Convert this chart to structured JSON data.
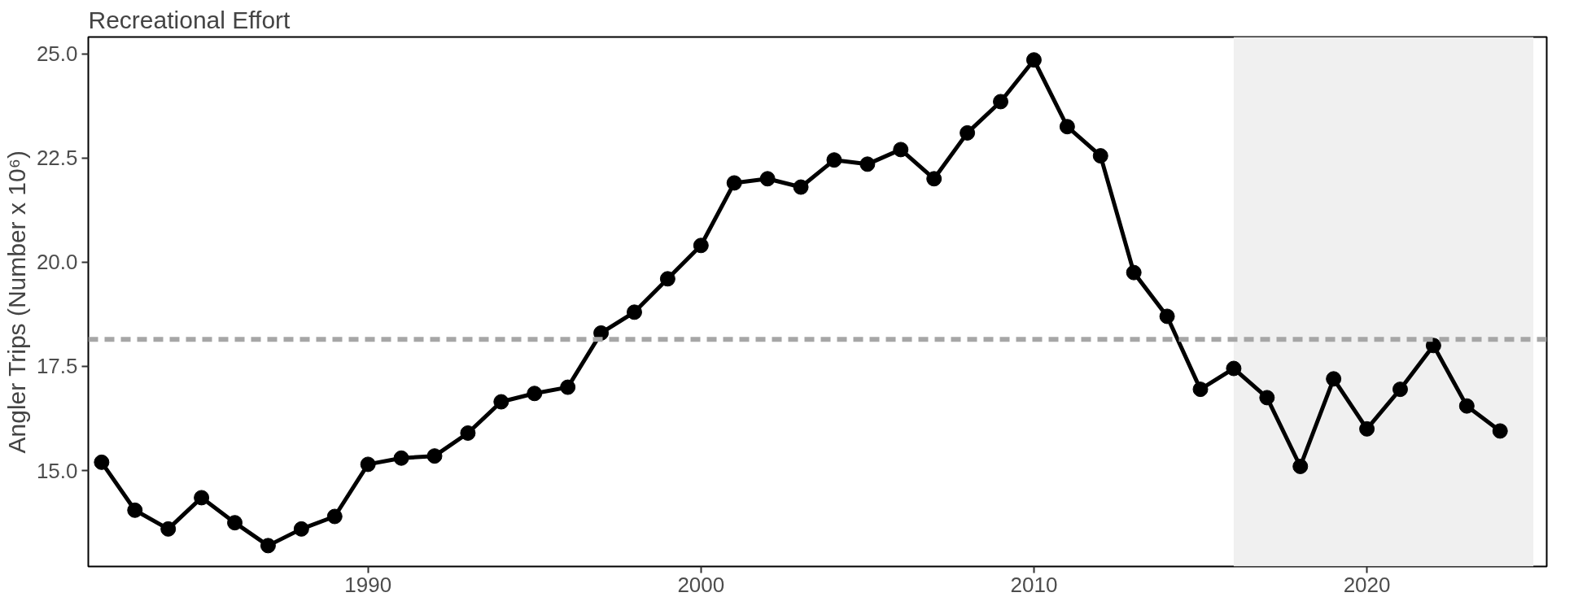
{
  "chart_data": {
    "type": "line",
    "title": "Recreational Effort",
    "ylabel": "Angler Trips (Number x 10⁶)",
    "x": [
      1982,
      1983,
      1984,
      1985,
      1986,
      1987,
      1988,
      1989,
      1990,
      1991,
      1992,
      1993,
      1994,
      1995,
      1996,
      1997,
      1998,
      1999,
      2000,
      2001,
      2002,
      2003,
      2004,
      2005,
      2006,
      2007,
      2008,
      2009,
      2010,
      2011,
      2012,
      2013,
      2014,
      2015,
      2016,
      2017,
      2018,
      2019,
      2020,
      2021,
      2022,
      2023,
      2024
    ],
    "series": [
      {
        "color": "#000000",
        "values": [
          15.2,
          14.05,
          13.6,
          14.35,
          13.75,
          13.2,
          13.6,
          13.9,
          15.15,
          15.3,
          15.35,
          15.9,
          16.65,
          16.85,
          17.0,
          18.3,
          18.8,
          19.6,
          20.4,
          21.9,
          22.0,
          21.8,
          22.45,
          22.35,
          22.7,
          22.0,
          23.1,
          23.85,
          24.85,
          23.25,
          22.55,
          19.75,
          18.7,
          16.95,
          17.45,
          16.75,
          15.1,
          17.2,
          16.0,
          16.95,
          18.0,
          16.55,
          15.95
        ]
      }
    ],
    "xlim": [
      1981.6,
      2025.4
    ],
    "xticks": [
      1990,
      2000,
      2010,
      2020
    ],
    "ylim": [
      12.7,
      25.4
    ],
    "yticks": [
      {
        "value": 15,
        "label": "15.0"
      },
      17.5,
      {
        "value": 20,
        "label": "20.0"
      },
      22.5,
      {
        "value": 25,
        "label": "25.0"
      }
    ],
    "ref_lines": [
      {
        "axis": "y",
        "value": 18.15,
        "color": "#a6a6a6",
        "line_style": "dashed"
      }
    ],
    "bands": [
      {
        "axis": "x",
        "from": 2016,
        "to": 2025,
        "color": "#f0f0f0"
      }
    ],
    "marker": "circle",
    "line_style": "solid",
    "grid": false
  }
}
